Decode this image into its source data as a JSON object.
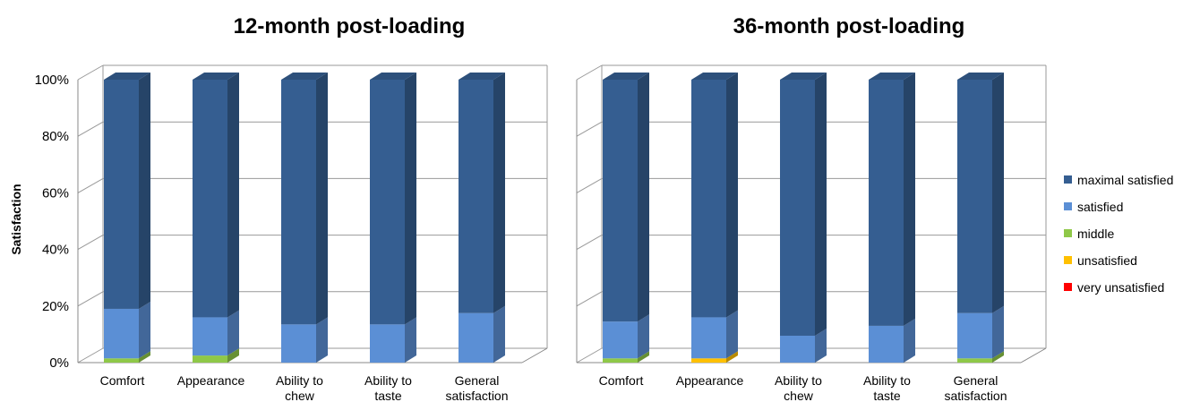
{
  "ylabel": "Satisfaction",
  "ytick_labels": [
    "0%",
    "20%",
    "40%",
    "60%",
    "80%",
    "100%"
  ],
  "categories": [
    "Comfort",
    "Appearance",
    "Ability to chew",
    "Ability to taste",
    "General satisfaction"
  ],
  "category_label_lines": [
    [
      "Comfort"
    ],
    [
      "Appearance"
    ],
    [
      "Ability to",
      "chew"
    ],
    [
      "Ability to",
      "taste"
    ],
    [
      "General",
      "satisfaction"
    ]
  ],
  "legend": [
    {
      "name": "maximal satisfied",
      "color": "#355E91"
    },
    {
      "name": "satisfied",
      "color": "#5B8FD5"
    },
    {
      "name": "middle",
      "color": "#8FC848"
    },
    {
      "name": "unsatisfied",
      "color": "#FFC000"
    },
    {
      "name": "very unsatisfied",
      "color": "#FF0000"
    }
  ],
  "chart_data": [
    {
      "type": "bar",
      "stacked": true,
      "title": "12-month post-loading",
      "ylabel": "Satisfaction",
      "ylim": [
        0,
        100
      ],
      "categories": [
        "Comfort",
        "Appearance",
        "Ability to chew",
        "Ability to taste",
        "General satisfaction"
      ],
      "series": [
        {
          "name": "very unsatisfied",
          "color": "#FF0000",
          "values": [
            0,
            0,
            0,
            0,
            0
          ]
        },
        {
          "name": "unsatisfied",
          "color": "#FFC000",
          "values": [
            0,
            0,
            0,
            0,
            0
          ]
        },
        {
          "name": "middle",
          "color": "#8FC848",
          "values": [
            1.5,
            2.5,
            0,
            0,
            0
          ]
        },
        {
          "name": "satisfied",
          "color": "#5B8FD5",
          "values": [
            17.5,
            13.5,
            13.5,
            13.5,
            17.5
          ]
        },
        {
          "name": "maximal satisfied",
          "color": "#355E91",
          "values": [
            81,
            84,
            86.5,
            86.5,
            82.5
          ]
        }
      ]
    },
    {
      "type": "bar",
      "stacked": true,
      "title": "36-month post-loading",
      "ylim": [
        0,
        100
      ],
      "categories": [
        "Comfort",
        "Appearance",
        "Ability to chew",
        "Ability to taste",
        "General satisfaction"
      ],
      "series": [
        {
          "name": "very unsatisfied",
          "color": "#FF0000",
          "values": [
            0,
            0,
            0,
            0,
            0
          ]
        },
        {
          "name": "unsatisfied",
          "color": "#FFC000",
          "values": [
            0,
            1.5,
            0,
            0,
            0
          ]
        },
        {
          "name": "middle",
          "color": "#8FC848",
          "values": [
            1.5,
            0,
            0,
            0,
            1.5
          ]
        },
        {
          "name": "satisfied",
          "color": "#5B8FD5",
          "values": [
            13,
            14.5,
            9.5,
            13,
            16
          ]
        },
        {
          "name": "maximal satisfied",
          "color": "#355E91",
          "values": [
            85.5,
            84,
            90.5,
            87,
            82.5
          ]
        }
      ]
    }
  ]
}
